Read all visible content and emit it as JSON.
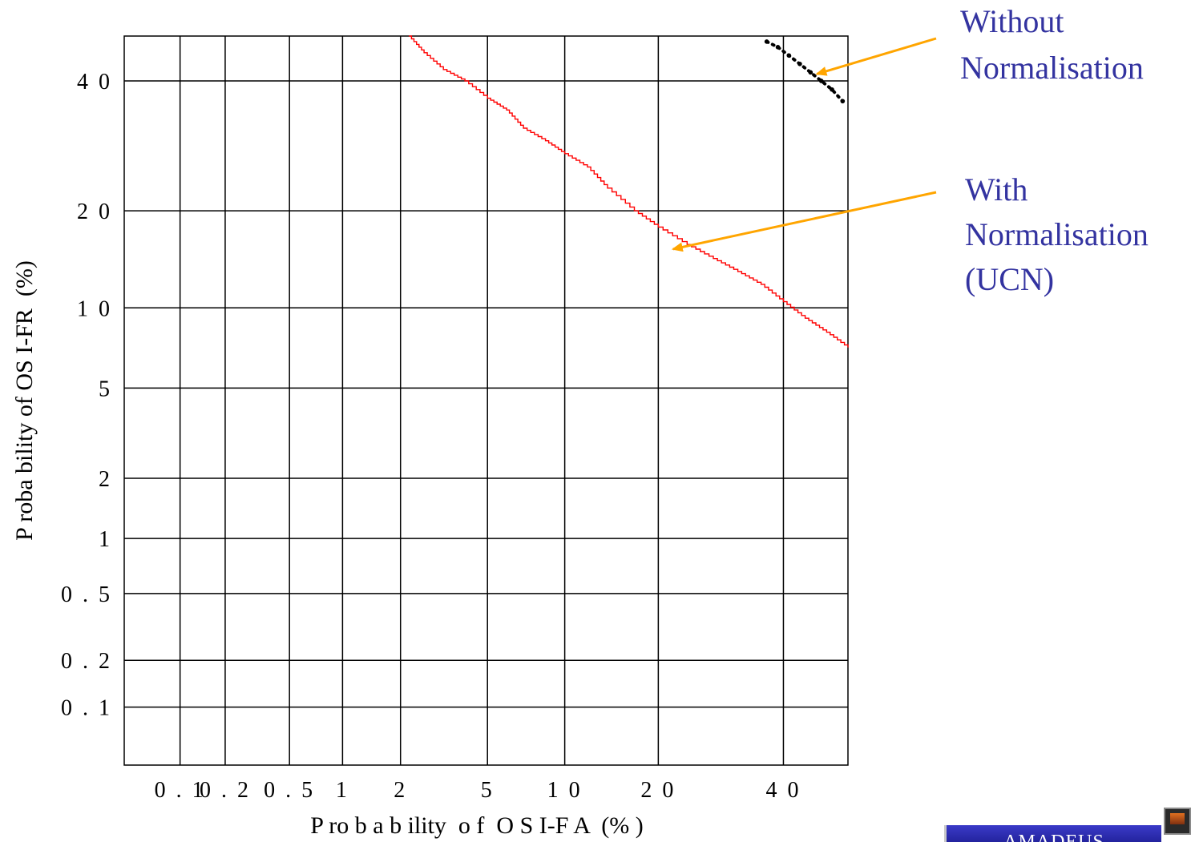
{
  "chart_data": {
    "type": "line",
    "xlabel": "P ro b a b ility  o f  O S I-F A  (% )",
    "ylabel": "P roba bility of OS I-FR  (%)",
    "x_scale": "normal-deviate (probit)",
    "y_scale": "normal-deviate (probit)",
    "xlim": [
      0.04,
      52
    ],
    "ylim": [
      0.04,
      48
    ],
    "x_ticks": [
      0.1,
      0.2,
      0.5,
      1,
      2,
      5,
      10,
      20,
      40
    ],
    "x_tick_labels": [
      "0 . 1",
      "0 . 2",
      "0 . 5",
      "1",
      "2",
      "5",
      "1 0",
      "2 0",
      "4 0"
    ],
    "y_ticks": [
      0.1,
      0.2,
      0.5,
      1,
      2,
      5,
      10,
      20,
      40
    ],
    "y_tick_labels": [
      "0 . 1",
      "0 . 2",
      "0 . 5",
      "1",
      "2",
      "5",
      "1 0",
      "2 0",
      "4 0"
    ],
    "grid": true,
    "series": [
      {
        "name": "With Normalisation (UCN)",
        "color": "#ff0000",
        "style": "solid",
        "x": [
          2.2,
          2.6,
          3.2,
          4,
          5,
          6,
          7,
          8.5,
          10,
          12,
          14,
          17,
          20,
          24,
          28,
          32,
          36,
          40,
          44,
          48,
          52
        ],
        "y": [
          48,
          45,
          42,
          40,
          37,
          35,
          32,
          30,
          28,
          26,
          23,
          20,
          18,
          16,
          14.5,
          13.2,
          12,
          10.5,
          9.2,
          8.2,
          7.2
        ]
      },
      {
        "name": "Without Normalisation",
        "color": "#000000",
        "style": "dotted",
        "x": [
          37,
          39,
          41,
          43,
          45,
          47,
          49,
          51
        ],
        "y": [
          47,
          46,
          44.5,
          43,
          41.5,
          40,
          38.5,
          36.5
        ]
      }
    ],
    "annotations": [
      {
        "lines": [
          "Without",
          "Normalisation"
        ],
        "target_series": 1
      },
      {
        "lines": [
          "With",
          "Normalisation",
          "(UCN)"
        ],
        "target_series": 0
      }
    ],
    "annotation_color": "#3333a0",
    "arrow_color": "#ffa500"
  },
  "logo": {
    "text": "AMADEUS"
  }
}
